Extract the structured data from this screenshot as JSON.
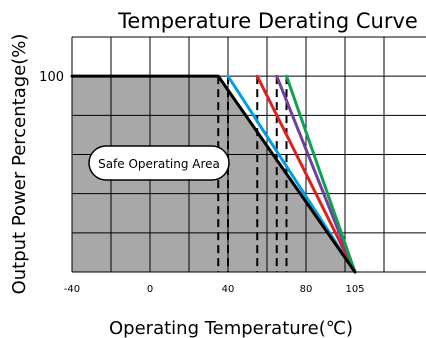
{
  "chart_data": {
    "type": "line",
    "title": "Temperature Derating Curve",
    "xlabel": "Operating Temperature(℃)",
    "ylabel": "Output Power Percentage(%)",
    "x_ticks": [
      -40,
      0,
      40,
      80,
      105
    ],
    "y_ticks": [
      100
    ],
    "xlim": [
      -40,
      120
    ],
    "ylim": [
      0,
      120
    ],
    "grid": true,
    "area_label": "Safe Operating Area",
    "shaded_region": [
      [
        -40,
        100
      ],
      [
        35,
        100
      ],
      [
        105,
        0
      ],
      [
        -40,
        0
      ]
    ],
    "series": [
      {
        "color": "#000000",
        "x": [
          -40,
          35,
          105
        ],
        "y": [
          100,
          100,
          0
        ]
      },
      {
        "color": "#00a0e0",
        "x": [
          40,
          105
        ],
        "y": [
          100,
          0
        ]
      },
      {
        "color": "#e02020",
        "x": [
          55,
          105
        ],
        "y": [
          100,
          0
        ]
      },
      {
        "color": "#7040a0",
        "x": [
          65,
          105
        ],
        "y": [
          100,
          0
        ]
      },
      {
        "color": "#10a050",
        "x": [
          70,
          105
        ],
        "y": [
          100,
          0
        ]
      }
    ],
    "dashed_x": [
      35,
      40,
      55,
      65,
      70
    ]
  }
}
